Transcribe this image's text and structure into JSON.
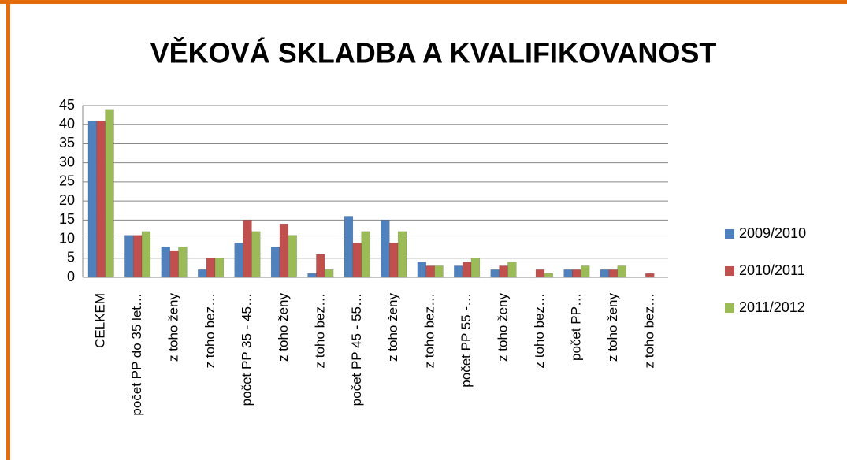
{
  "chart_data": {
    "type": "bar",
    "title": "VĚKOVÁ SKLADBA A KVALIFIKOVANOST",
    "categories": [
      "CELKEM",
      "počet PP do 35 let…",
      "z toho ženy",
      "z toho bez…",
      "počet PP  35 - 45…",
      "z toho ženy",
      "z toho bez…",
      "počet PP  45 - 55…",
      "z toho ženy",
      "z toho bez…",
      "počet PP  55 -…",
      "z toho ženy",
      "z toho bez…",
      "počet PP…",
      "z toho ženy",
      "z toho bez…"
    ],
    "series": [
      {
        "name": "2009/2010",
        "color": "#4f81bd",
        "values": [
          41,
          11,
          8,
          2,
          9,
          8,
          1,
          16,
          15,
          4,
          3,
          2,
          0,
          2,
          2,
          0
        ]
      },
      {
        "name": "2010/2011",
        "color": "#c0504d",
        "values": [
          41,
          11,
          7,
          5,
          15,
          14,
          6,
          9,
          9,
          3,
          4,
          3,
          2,
          2,
          2,
          1
        ]
      },
      {
        "name": "2011/2012",
        "color": "#9bbb59",
        "values": [
          44,
          12,
          8,
          5,
          12,
          11,
          2,
          12,
          12,
          3,
          5,
          4,
          1,
          3,
          3,
          0
        ]
      }
    ],
    "ylim": [
      0,
      45
    ],
    "yticks": [
      0,
      5,
      10,
      15,
      20,
      25,
      30,
      35,
      40,
      45
    ],
    "grid": true,
    "legend": "right"
  }
}
